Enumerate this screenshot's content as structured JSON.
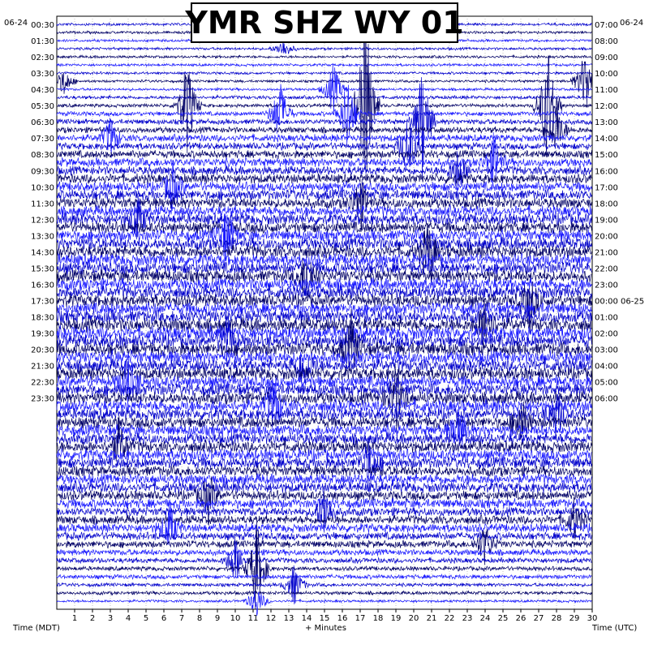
{
  "title": "YMR SHZ WY 01",
  "left_date": "06-24",
  "right_date": "06-24",
  "left_axis_label": "Time (MDT)",
  "center_axis_label": "+ Minutes",
  "right_axis_label": "Time (UTC)",
  "chart_data": {
    "type": "helicorder",
    "title": "YMR SHZ WY 01",
    "xlabel": "+ Minutes",
    "xlim": [
      0,
      30
    ],
    "x_ticks": [
      "1",
      "2",
      "3",
      "4",
      "5",
      "6",
      "7",
      "8",
      "9",
      "10",
      "11",
      "12",
      "13",
      "14",
      "15",
      "16",
      "17",
      "18",
      "19",
      "20",
      "21",
      "22",
      "23",
      "24",
      "25",
      "26",
      "27",
      "28",
      "29",
      "30"
    ],
    "row_minutes": 30,
    "left_time_labels": [
      "00:30",
      "01:30",
      "02:30",
      "03:30",
      "04:30",
      "05:30",
      "06:30",
      "07:30",
      "08:30",
      "09:30",
      "10:30",
      "11:30",
      "12:30",
      "13:30",
      "14:30",
      "15:30",
      "16:30",
      "17:30",
      "18:30",
      "19:30",
      "20:30",
      "21:30",
      "22:30",
      "23:30"
    ],
    "right_time_labels": [
      "07:00",
      "08:00",
      "09:00",
      "10:00",
      "11:00",
      "12:00",
      "13:00",
      "14:00",
      "15:00",
      "16:00",
      "17:00",
      "18:00",
      "19:00",
      "20:00",
      "21:00",
      "22:00",
      "23:00",
      "00:00 06-25",
      "01:00",
      "02:00",
      "03:00",
      "04:00",
      "05:00",
      "06:00"
    ],
    "trace_colors": [
      "#0000cc",
      "#000066",
      "#1a1aff"
    ],
    "row_amplitude": [
      0.3,
      0.3,
      0.3,
      0.3,
      0.3,
      0.3,
      0.3,
      0.3,
      0.3,
      0.4,
      0.4,
      0.5,
      0.6,
      0.7,
      0.8,
      0.8,
      0.9,
      1.0,
      1.0,
      1.1,
      1.1,
      1.2,
      1.2,
      1.2,
      1.3,
      1.3,
      1.3,
      1.4,
      1.4,
      1.4,
      1.4,
      1.4,
      1.4,
      1.4,
      1.4,
      1.4,
      1.5,
      1.5,
      1.5,
      1.5,
      1.5,
      1.5,
      1.4,
      1.4,
      1.4,
      1.4,
      1.4,
      1.4,
      1.3,
      1.3,
      1.3,
      1.3,
      1.3,
      1.3,
      1.3,
      1.2,
      1.2,
      1.2,
      1.1,
      1.1,
      1.0,
      1.0,
      1.0,
      0.9,
      0.8,
      0.7,
      0.6,
      0.5,
      0.5,
      0.4,
      0.4,
      0.3
    ],
    "events": [
      {
        "row": 3,
        "minute": 12.7,
        "amp": 3
      },
      {
        "row": 7,
        "minute": 0.4,
        "amp": 4
      },
      {
        "row": 7,
        "minute": 29.6,
        "amp": 10
      },
      {
        "row": 8,
        "minute": 15.5,
        "amp": 8
      },
      {
        "row": 10,
        "minute": 7.3,
        "amp": 15
      },
      {
        "row": 10,
        "minute": 17.3,
        "amp": 30
      },
      {
        "row": 10,
        "minute": 27.5,
        "amp": 20
      },
      {
        "row": 11,
        "minute": 16.3,
        "amp": 12
      },
      {
        "row": 11,
        "minute": 12.5,
        "amp": 10
      },
      {
        "row": 12,
        "minute": 20.5,
        "amp": 18
      },
      {
        "row": 13,
        "minute": 28.0,
        "amp": 8
      },
      {
        "row": 14,
        "minute": 3.0,
        "amp": 6
      },
      {
        "row": 15,
        "minute": 19.7,
        "amp": 10
      },
      {
        "row": 17,
        "minute": 24.5,
        "amp": 8
      },
      {
        "row": 18,
        "minute": 22.5,
        "amp": 7
      },
      {
        "row": 20,
        "minute": 6.5,
        "amp": 7
      },
      {
        "row": 22,
        "minute": 17.0,
        "amp": 8
      },
      {
        "row": 24,
        "minute": 4.5,
        "amp": 7
      },
      {
        "row": 26,
        "minute": 9.5,
        "amp": 8
      },
      {
        "row": 28,
        "minute": 20.8,
        "amp": 9
      },
      {
        "row": 31,
        "minute": 14.0,
        "amp": 9
      },
      {
        "row": 34,
        "minute": 26.5,
        "amp": 8
      },
      {
        "row": 37,
        "minute": 24.0,
        "amp": 8
      },
      {
        "row": 39,
        "minute": 9.5,
        "amp": 9
      },
      {
        "row": 40,
        "minute": 16.5,
        "amp": 9
      },
      {
        "row": 42,
        "minute": 13.8,
        "amp": 8
      },
      {
        "row": 44,
        "minute": 4.0,
        "amp": 8
      },
      {
        "row": 46,
        "minute": 19.0,
        "amp": 10
      },
      {
        "row": 47,
        "minute": 12.2,
        "amp": 8
      },
      {
        "row": 48,
        "minute": 28.0,
        "amp": 7
      },
      {
        "row": 49,
        "minute": 26.0,
        "amp": 8
      },
      {
        "row": 50,
        "minute": 22.5,
        "amp": 7
      },
      {
        "row": 52,
        "minute": 3.5,
        "amp": 7
      },
      {
        "row": 54,
        "minute": 17.5,
        "amp": 8
      },
      {
        "row": 58,
        "minute": 8.5,
        "amp": 7
      },
      {
        "row": 60,
        "minute": 15.0,
        "amp": 8
      },
      {
        "row": 61,
        "minute": 29.0,
        "amp": 6
      },
      {
        "row": 62,
        "minute": 6.3,
        "amp": 7
      },
      {
        "row": 64,
        "minute": 24.0,
        "amp": 6
      },
      {
        "row": 66,
        "minute": 10.0,
        "amp": 7
      },
      {
        "row": 67,
        "minute": 11.2,
        "amp": 14
      },
      {
        "row": 69,
        "minute": 13.3,
        "amp": 6
      },
      {
        "row": 71,
        "minute": 11.2,
        "amp": 5
      }
    ]
  }
}
